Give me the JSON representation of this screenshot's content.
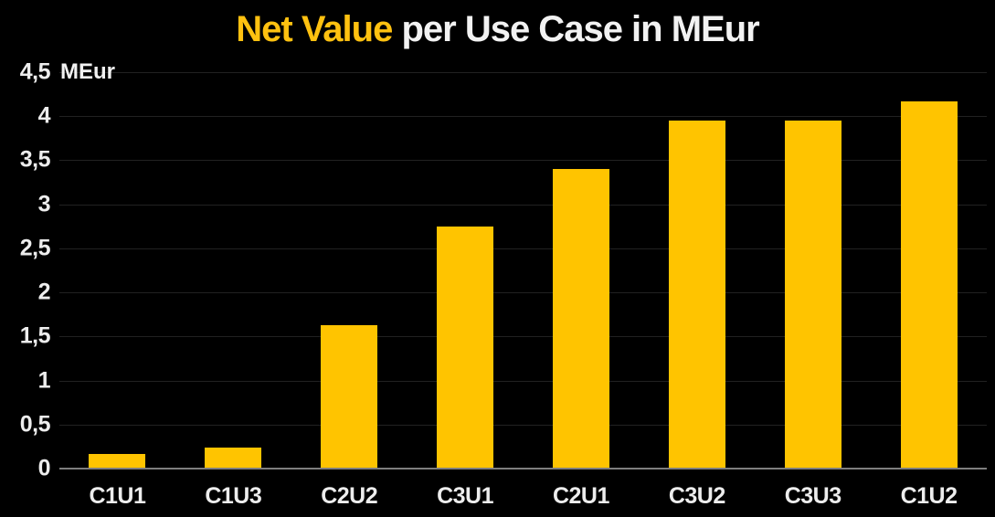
{
  "chart_data": {
    "type": "bar",
    "title": "Net Value per Use Case in MEur",
    "title_accent": "Net Value",
    "title_rest": " per Use Case in MEur",
    "ylabel": "MEur",
    "xlabel": "",
    "categories": [
      "C1U1",
      "C1U3",
      "C2U2",
      "C3U1",
      "C2U1",
      "C3U2",
      "C3U3",
      "C1U2"
    ],
    "values": [
      0.17,
      0.24,
      1.63,
      2.75,
      3.4,
      3.95,
      3.95,
      4.17
    ],
    "ylim": [
      0,
      4.5
    ],
    "grid": "horizontal",
    "legend": "none",
    "yticks": [
      {
        "v": 0,
        "label": "0"
      },
      {
        "v": 0.5,
        "label": "0,5"
      },
      {
        "v": 1,
        "label": "1"
      },
      {
        "v": 1.5,
        "label": "1,5"
      },
      {
        "v": 2,
        "label": "2"
      },
      {
        "v": 2.5,
        "label": "2,5"
      },
      {
        "v": 3,
        "label": "3"
      },
      {
        "v": 3.5,
        "label": "3,5"
      },
      {
        "v": 4,
        "label": "4"
      },
      {
        "v": 4.5,
        "label": "4,5"
      }
    ],
    "colors": {
      "background": "#000000",
      "bar": "#FFC400",
      "title_accent": "#FFC110",
      "text": "#F2F2F2",
      "tick_text": "#EDEDED",
      "gridline": "#212121",
      "axis_line": "#7E7E7E"
    }
  }
}
